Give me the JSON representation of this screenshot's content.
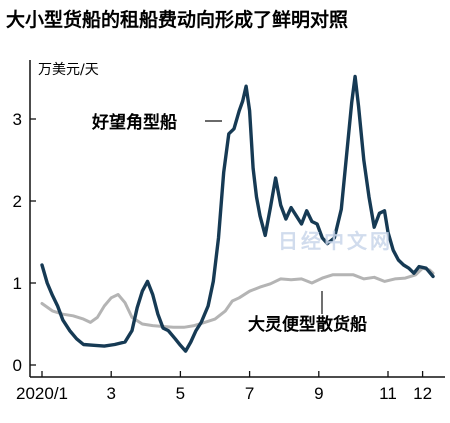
{
  "chart_data": {
    "type": "line",
    "title": "大小型货船的租船费动向形成了鲜明对照",
    "ylabel": "万美元/天",
    "xlabel": "",
    "ylim": [
      0,
      3.6
    ],
    "xlim": [
      0,
      11.8
    ],
    "y_ticks": [
      {
        "value": 0,
        "label": "0"
      },
      {
        "value": 1,
        "label": "1"
      },
      {
        "value": 2,
        "label": "2"
      },
      {
        "value": 3,
        "label": "3"
      }
    ],
    "x_ticks": [
      {
        "value": 0,
        "label": "2020/1"
      },
      {
        "value": 2,
        "label": "3"
      },
      {
        "value": 4,
        "label": "5"
      },
      {
        "value": 6,
        "label": "7"
      },
      {
        "value": 8,
        "label": "9"
      },
      {
        "value": 10,
        "label": "11"
      },
      {
        "value": 11,
        "label": "12"
      }
    ],
    "grid": false,
    "series": [
      {
        "name": "好望角型船",
        "color": "#163a54",
        "points": [
          [
            0.0,
            1.22
          ],
          [
            0.15,
            1.0
          ],
          [
            0.3,
            0.85
          ],
          [
            0.45,
            0.72
          ],
          [
            0.6,
            0.55
          ],
          [
            0.8,
            0.42
          ],
          [
            1.0,
            0.32
          ],
          [
            1.2,
            0.25
          ],
          [
            1.5,
            0.24
          ],
          [
            1.8,
            0.23
          ],
          [
            2.1,
            0.25
          ],
          [
            2.4,
            0.28
          ],
          [
            2.6,
            0.42
          ],
          [
            2.75,
            0.7
          ],
          [
            2.9,
            0.9
          ],
          [
            3.05,
            1.02
          ],
          [
            3.2,
            0.86
          ],
          [
            3.35,
            0.62
          ],
          [
            3.5,
            0.45
          ],
          [
            3.65,
            0.42
          ],
          [
            3.85,
            0.32
          ],
          [
            4.0,
            0.24
          ],
          [
            4.15,
            0.17
          ],
          [
            4.3,
            0.28
          ],
          [
            4.45,
            0.42
          ],
          [
            4.6,
            0.52
          ],
          [
            4.8,
            0.72
          ],
          [
            4.95,
            1.02
          ],
          [
            5.1,
            1.55
          ],
          [
            5.25,
            2.35
          ],
          [
            5.4,
            2.82
          ],
          [
            5.55,
            2.88
          ],
          [
            5.7,
            3.1
          ],
          [
            5.8,
            3.22
          ],
          [
            5.9,
            3.4
          ],
          [
            6.0,
            3.1
          ],
          [
            6.1,
            2.4
          ],
          [
            6.2,
            2.05
          ],
          [
            6.3,
            1.82
          ],
          [
            6.45,
            1.58
          ],
          [
            6.6,
            1.92
          ],
          [
            6.75,
            2.28
          ],
          [
            6.9,
            1.95
          ],
          [
            7.05,
            1.78
          ],
          [
            7.2,
            1.92
          ],
          [
            7.35,
            1.82
          ],
          [
            7.5,
            1.72
          ],
          [
            7.65,
            1.88
          ],
          [
            7.8,
            1.75
          ],
          [
            7.95,
            1.72
          ],
          [
            8.1,
            1.55
          ],
          [
            8.25,
            1.48
          ],
          [
            8.45,
            1.55
          ],
          [
            8.65,
            1.9
          ],
          [
            8.8,
            2.55
          ],
          [
            8.95,
            3.2
          ],
          [
            9.05,
            3.52
          ],
          [
            9.15,
            3.15
          ],
          [
            9.3,
            2.5
          ],
          [
            9.45,
            2.05
          ],
          [
            9.6,
            1.68
          ],
          [
            9.75,
            1.85
          ],
          [
            9.9,
            1.88
          ],
          [
            10.0,
            1.62
          ],
          [
            10.15,
            1.4
          ],
          [
            10.3,
            1.28
          ],
          [
            10.45,
            1.22
          ],
          [
            10.6,
            1.18
          ],
          [
            10.75,
            1.12
          ],
          [
            10.9,
            1.2
          ],
          [
            11.1,
            1.18
          ],
          [
            11.3,
            1.08
          ]
        ]
      },
      {
        "name": "大灵便型散货船",
        "color": "#b4b4b4",
        "points": [
          [
            0.0,
            0.75
          ],
          [
            0.3,
            0.66
          ],
          [
            0.6,
            0.62
          ],
          [
            0.9,
            0.6
          ],
          [
            1.2,
            0.56
          ],
          [
            1.4,
            0.52
          ],
          [
            1.6,
            0.58
          ],
          [
            1.8,
            0.72
          ],
          [
            2.0,
            0.82
          ],
          [
            2.2,
            0.86
          ],
          [
            2.4,
            0.76
          ],
          [
            2.6,
            0.58
          ],
          [
            2.9,
            0.5
          ],
          [
            3.2,
            0.48
          ],
          [
            3.5,
            0.47
          ],
          [
            3.8,
            0.46
          ],
          [
            4.1,
            0.46
          ],
          [
            4.4,
            0.48
          ],
          [
            4.7,
            0.52
          ],
          [
            5.0,
            0.56
          ],
          [
            5.3,
            0.66
          ],
          [
            5.5,
            0.78
          ],
          [
            5.7,
            0.82
          ],
          [
            6.0,
            0.9
          ],
          [
            6.3,
            0.95
          ],
          [
            6.6,
            0.99
          ],
          [
            6.9,
            1.05
          ],
          [
            7.2,
            1.04
          ],
          [
            7.5,
            1.05
          ],
          [
            7.8,
            1.0
          ],
          [
            8.1,
            1.06
          ],
          [
            8.4,
            1.1
          ],
          [
            8.7,
            1.1
          ],
          [
            9.0,
            1.1
          ],
          [
            9.3,
            1.05
          ],
          [
            9.6,
            1.07
          ],
          [
            9.9,
            1.02
          ],
          [
            10.2,
            1.05
          ],
          [
            10.5,
            1.06
          ],
          [
            10.8,
            1.1
          ],
          [
            11.0,
            1.18
          ],
          [
            11.2,
            1.16
          ],
          [
            11.3,
            1.12
          ]
        ]
      }
    ],
    "annotations": [
      {
        "text": "日经中文网",
        "kind": "watermark"
      }
    ]
  }
}
